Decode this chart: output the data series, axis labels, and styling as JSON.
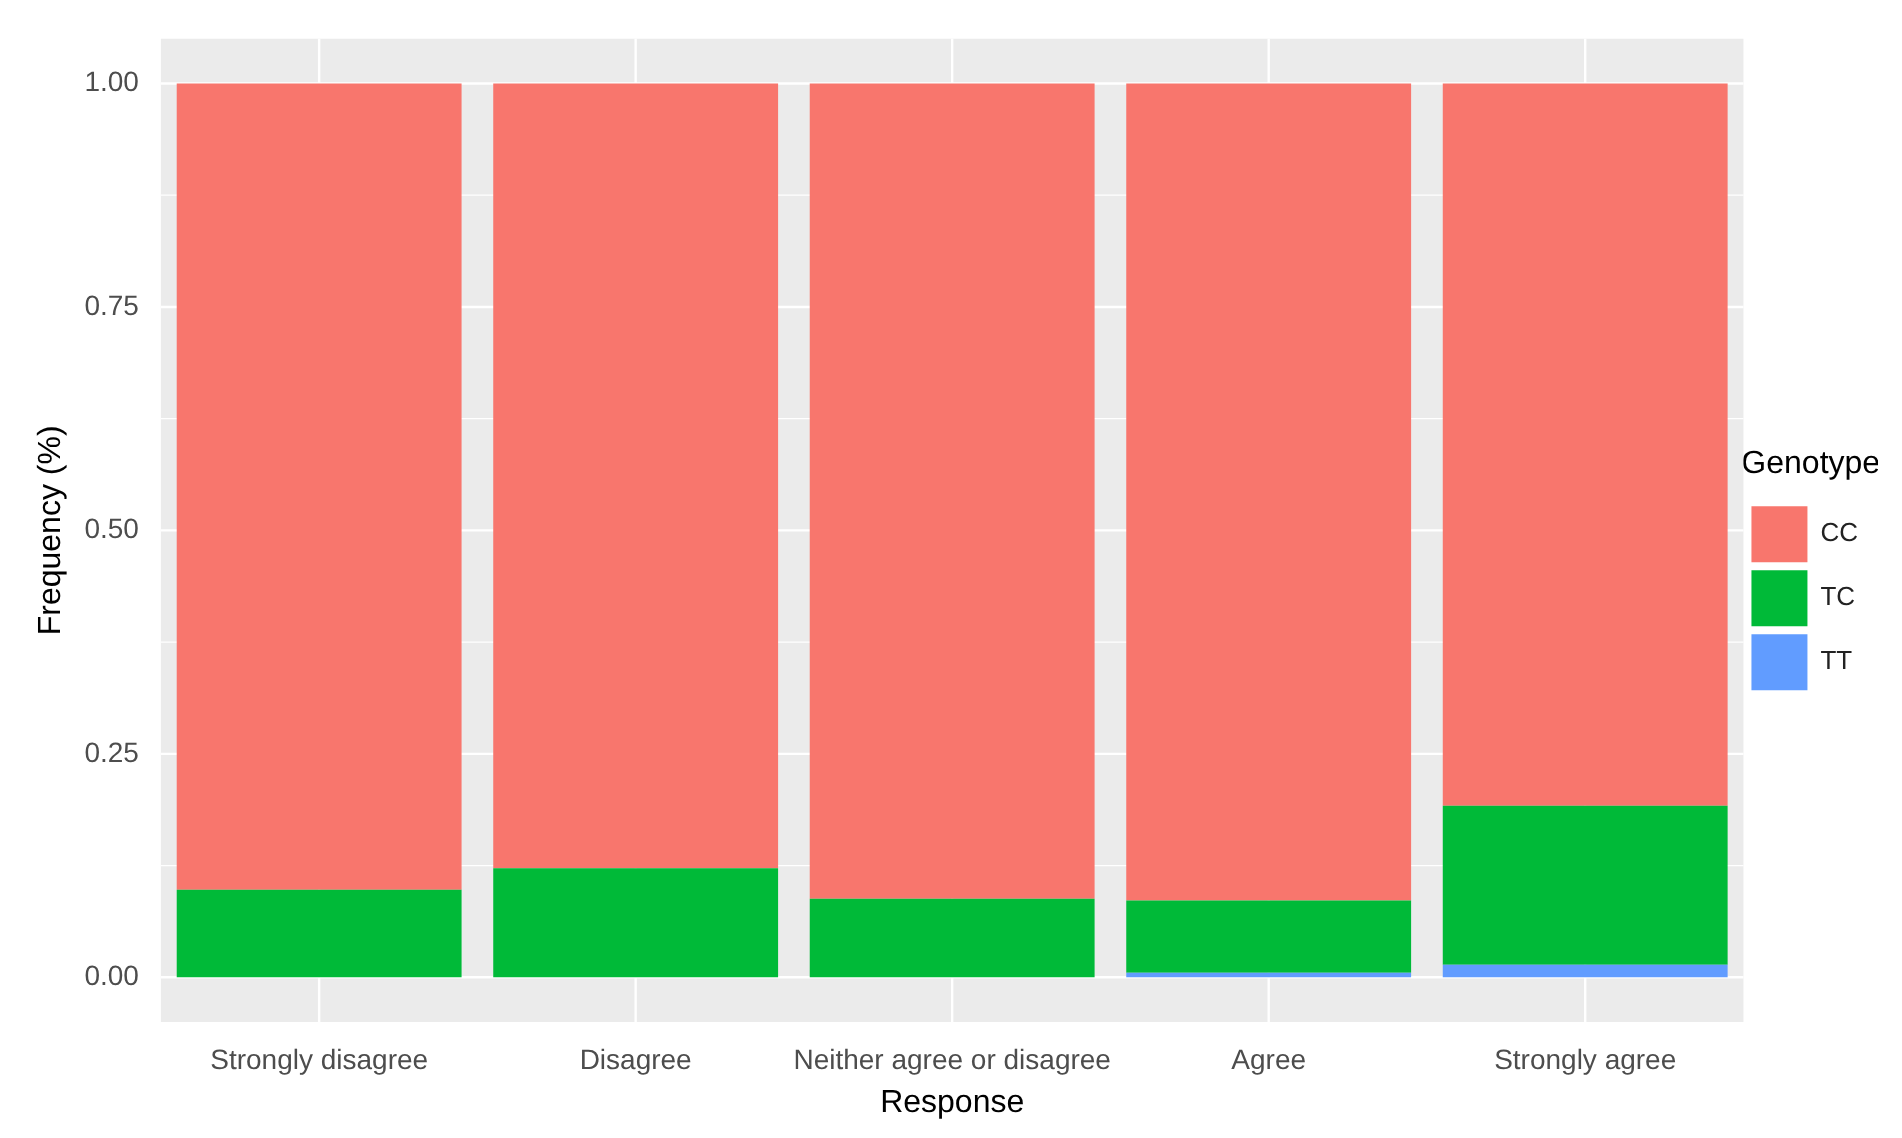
{
  "chart_data": {
    "type": "bar",
    "stacked": true,
    "xlabel": "Response",
    "ylabel": "Frequency (%)",
    "legend_title": "Genotype",
    "legend": "right",
    "grid": true,
    "categories": [
      "Strongly disagree",
      "Disagree",
      "Neither agree or disagree",
      "Agree",
      "Strongly agree"
    ],
    "series": [
      {
        "name": "TT",
        "color": "#619cff",
        "values": [
          0,
          0,
          0,
          0.005,
          0.014
        ]
      },
      {
        "name": "TC",
        "color": "#00ba38",
        "values": [
          0.098,
          0.122,
          0.088,
          0.081,
          0.178
        ]
      },
      {
        "name": "CC",
        "color": "#f8766d",
        "values": [
          0.902,
          0.878,
          0.912,
          0.914,
          0.808
        ]
      }
    ],
    "ylim": [
      -0.05,
      1.05
    ],
    "yticks": [
      {
        "value": 0,
        "label": "0.00"
      },
      {
        "value": 0.25,
        "label": "0.25"
      },
      {
        "value": 0.5,
        "label": "0.50"
      },
      {
        "value": 0.75,
        "label": "0.75"
      },
      {
        "value": 1,
        "label": "1.00"
      }
    ]
  }
}
